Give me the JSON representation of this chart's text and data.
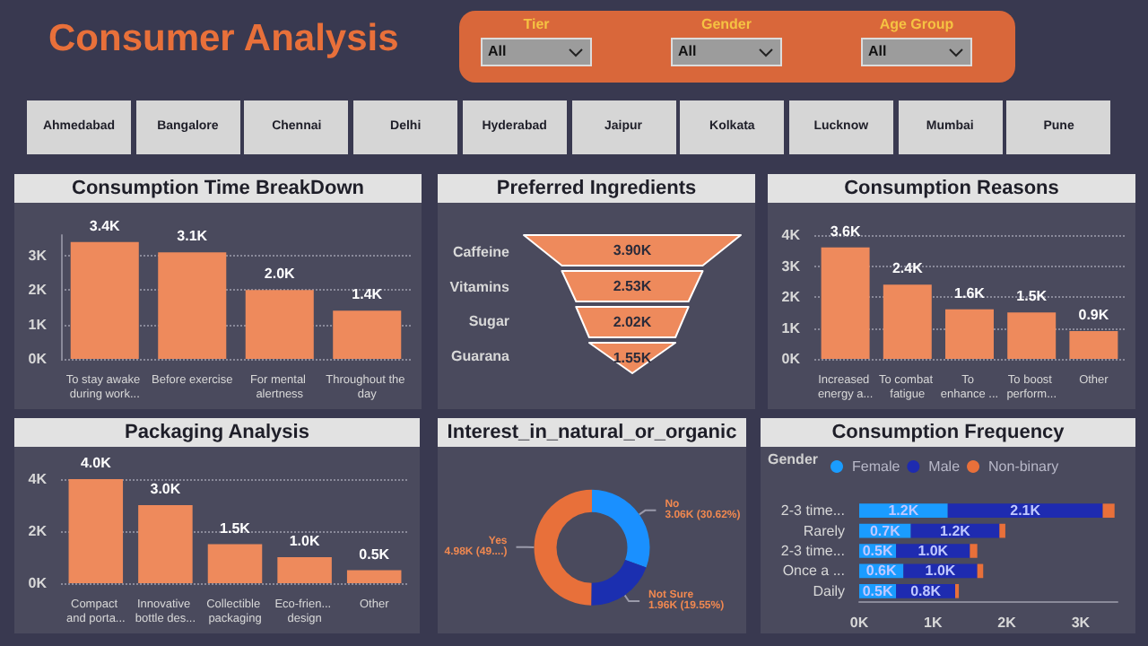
{
  "chart_data": [
    {
      "type": "other",
      "title": "Consumer Analysis",
      "annotations": [
        "Tier",
        "All",
        "Gender",
        "All",
        "Age Group",
        "All"
      ],
      "categories": [
        "Ahmedabad",
        "Bangalore",
        "Chennai",
        "Delhi",
        "Hyderabad",
        "Jaipur",
        "Kolkata",
        "Lucknow",
        "Mumbai",
        "Pune"
      ]
    },
    {
      "type": "bar",
      "title": "Consumption Time BreakDown",
      "categories": [
        "To stay awake during work...",
        "Before exercise",
        "For mental alertness",
        "Throughout the day"
      ],
      "values": [
        3400,
        3100,
        2000,
        1400
      ],
      "value_labels": [
        "3.4K",
        "3.1K",
        "2.0K",
        "1.4K"
      ],
      "color": "#ee8a5c",
      "ylim": [
        0,
        3600
      ],
      "yticks": [
        {
          "value": 0,
          "label": "0K"
        },
        {
          "value": 1000,
          "label": "1K"
        },
        {
          "value": 2000,
          "label": "2K"
        },
        {
          "value": 3000,
          "label": "3K"
        }
      ],
      "grid": "y"
    },
    {
      "type": "other",
      "title": "Preferred Ingredients",
      "categories": [
        "Caffeine",
        "Vitamins",
        "Sugar",
        "Guarana"
      ],
      "values": [
        3900,
        2530,
        2020,
        1550
      ],
      "value_labels": [
        "3.90K",
        "2.53K",
        "2.02K",
        "1.55K"
      ],
      "color": "#ee8a5c"
    },
    {
      "type": "bar",
      "title": "Consumption Reasons",
      "categories": [
        "Increased energy a...",
        "To combat fatigue",
        "To enhance ...",
        "To boost perform...",
        "Other"
      ],
      "values": [
        3600,
        2400,
        1600,
        1500,
        900
      ],
      "value_labels": [
        "3.6K",
        "2.4K",
        "1.6K",
        "1.5K",
        "0.9K"
      ],
      "color": "#ee8a5c",
      "ylim": [
        0,
        4000
      ],
      "yticks": [
        {
          "value": 0,
          "label": "0K"
        },
        {
          "value": 1000,
          "label": "1K"
        },
        {
          "value": 2000,
          "label": "2K"
        },
        {
          "value": 3000,
          "label": "3K"
        },
        {
          "value": 4000,
          "label": "4K"
        }
      ],
      "grid": "y"
    },
    {
      "type": "bar",
      "title": "Packaging Analysis",
      "categories": [
        "Compact and porta...",
        "Innovative bottle des...",
        "Collectible packaging",
        "Eco-frien... design",
        "Other"
      ],
      "values": [
        4000,
        3000,
        1500,
        1000,
        500
      ],
      "value_labels": [
        "4.0K",
        "3.0K",
        "1.5K",
        "1.0K",
        "0.5K"
      ],
      "color": "#ee8a5c",
      "ylim": [
        0,
        4000
      ],
      "yticks": [
        {
          "value": 0,
          "label": "0K"
        },
        {
          "value": 2000,
          "label": "2K"
        },
        {
          "value": 4000,
          "label": "4K"
        }
      ],
      "grid": "y"
    },
    {
      "type": "donut",
      "title": "Interest_in_natural_or_organic",
      "categories": [
        "No",
        "Not Sure",
        "Yes"
      ],
      "values": [
        3060,
        1960,
        4980
      ],
      "value_labels": [
        "3.06K (30.62%)",
        "1.96K (19.55%)",
        "4.98K (49....)"
      ],
      "colors": [
        "#1a90ff",
        "#1b2fb0",
        "#e8703a"
      ]
    },
    {
      "type": "bar",
      "title": "Consumption Frequency",
      "orientation": "horizontal",
      "stacked": true,
      "legend": "top left",
      "legend_title": "Gender",
      "categories": [
        "2-3 time...",
        "Rarely",
        "2-3 time...",
        "Once a ...",
        "Daily"
      ],
      "xlim": [
        0,
        3500
      ],
      "xticks": [
        {
          "value": 0,
          "label": "0K"
        },
        {
          "value": 1000,
          "label": "1K"
        },
        {
          "value": 2000,
          "label": "2K"
        },
        {
          "value": 3000,
          "label": "3K"
        }
      ],
      "series": [
        {
          "name": "Female",
          "color": "#1a9cff",
          "values": [
            1200,
            700,
            500,
            600,
            500
          ],
          "value_labels": [
            "1.2K",
            "0.7K",
            "0.5K",
            "0.6K",
            "0.5K"
          ]
        },
        {
          "name": "Male",
          "color": "#1e2bb0",
          "values": [
            2100,
            1200,
            1000,
            1000,
            800
          ],
          "value_labels": [
            "2.1K",
            "1.2K",
            "1.0K",
            "1.0K",
            "0.8K"
          ]
        },
        {
          "name": "Non-binary",
          "color": "#e8703a",
          "values": [
            160,
            80,
            100,
            80,
            50
          ]
        }
      ]
    }
  ]
}
